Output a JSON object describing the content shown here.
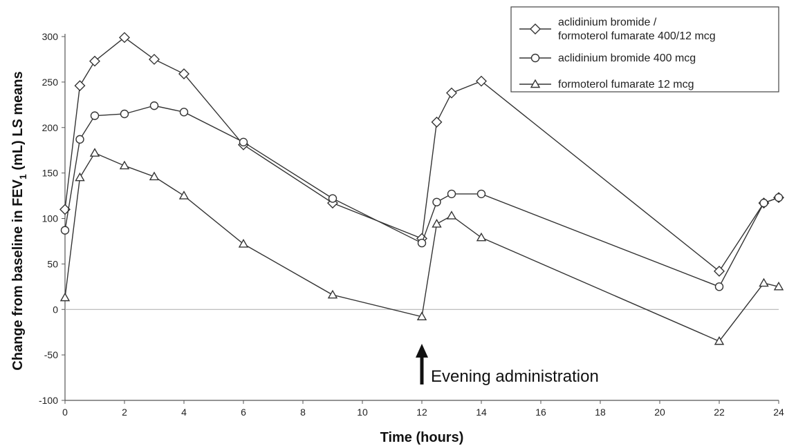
{
  "chart_data": {
    "type": "line",
    "xlabel": "Time (hours)",
    "ylabel_parts": {
      "main": "Change from baseline in FEV",
      "sub": "1",
      "rest": " (mL) LS means"
    },
    "xlim": [
      0,
      24
    ],
    "ylim": [
      -100,
      300
    ],
    "x_ticks": [
      0,
      2,
      4,
      6,
      8,
      10,
      12,
      14,
      16,
      18,
      20,
      22,
      24
    ],
    "y_ticks": [
      -100,
      -50,
      0,
      50,
      100,
      150,
      200,
      250,
      300
    ],
    "zero_line": true,
    "grid": false,
    "legend_position": "top-right",
    "series": [
      {
        "name_lines": [
          "aclidinium bromide /",
          "formoterol fumarate 400/12 mcg"
        ],
        "marker": "diamond",
        "points": [
          [
            0,
            110
          ],
          [
            0.5,
            246
          ],
          [
            1,
            273
          ],
          [
            2,
            299
          ],
          [
            3,
            275
          ],
          [
            4,
            259
          ],
          [
            6,
            181
          ],
          [
            9,
            117
          ],
          [
            12,
            78
          ],
          [
            12.5,
            206
          ],
          [
            13,
            238
          ],
          [
            14,
            251
          ],
          [
            22,
            42
          ],
          [
            23.5,
            117
          ],
          [
            24,
            123
          ]
        ]
      },
      {
        "name_lines": [
          "aclidinium bromide 400 mcg"
        ],
        "marker": "circle",
        "points": [
          [
            0,
            87
          ],
          [
            0.5,
            187
          ],
          [
            1,
            213
          ],
          [
            2,
            215
          ],
          [
            3,
            224
          ],
          [
            4,
            217
          ],
          [
            6,
            184
          ],
          [
            9,
            122
          ],
          [
            12,
            73
          ],
          [
            12.5,
            118
          ],
          [
            13,
            127
          ],
          [
            14,
            127
          ],
          [
            22,
            25
          ],
          [
            23.5,
            117
          ],
          [
            24,
            123
          ]
        ]
      },
      {
        "name_lines": [
          "formoterol fumarate 12 mcg"
        ],
        "marker": "triangle",
        "points": [
          [
            0,
            13
          ],
          [
            0.5,
            145
          ],
          [
            1,
            172
          ],
          [
            2,
            158
          ],
          [
            3,
            146
          ],
          [
            4,
            125
          ],
          [
            6,
            72
          ],
          [
            9,
            16
          ],
          [
            12,
            -8
          ],
          [
            12.5,
            94
          ],
          [
            13,
            103
          ],
          [
            14,
            79
          ],
          [
            22,
            -35
          ],
          [
            23.5,
            29
          ],
          [
            24,
            25
          ]
        ]
      }
    ],
    "annotation": {
      "text": "Evening administration",
      "x": 12
    }
  }
}
